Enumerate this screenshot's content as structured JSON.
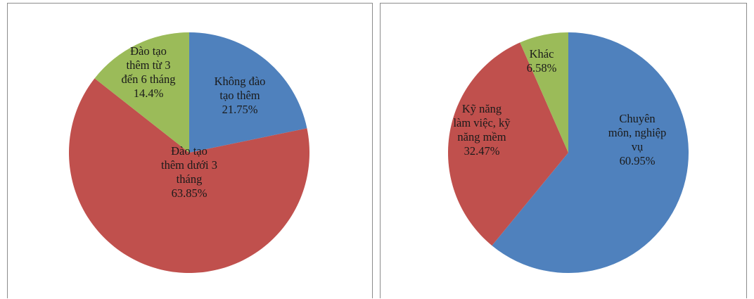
{
  "chart_data": [
    {
      "type": "pie",
      "title": "",
      "start_angle_deg": 0,
      "direction": "clockwise",
      "slices": [
        {
          "label_lines": [
            "Không đào",
            "tạo thêm",
            "21.75%"
          ],
          "value": 21.75,
          "color": "#4f81bd"
        },
        {
          "label_lines": [
            "Đào tạo",
            "thêm dưới 3",
            "tháng",
            "63.85%"
          ],
          "value": 63.85,
          "color": "#c0504d"
        },
        {
          "label_lines": [
            "Đào tạo",
            "thêm từ 3",
            "đến 6 tháng",
            "14.4%"
          ],
          "value": 14.4,
          "color": "#9bbb59"
        }
      ]
    },
    {
      "type": "pie",
      "title": "",
      "start_angle_deg": 0,
      "direction": "clockwise",
      "slices": [
        {
          "label_lines": [
            "Chuyên",
            "môn, nghiệp",
            "vụ",
            "60.95%"
          ],
          "value": 60.95,
          "color": "#4f81bd"
        },
        {
          "label_lines": [
            "Kỹ năng",
            "làm việc, kỹ",
            "năng mềm",
            "32.47%"
          ],
          "value": 32.47,
          "color": "#c0504d"
        },
        {
          "label_lines": [
            "Khác",
            "6.58%"
          ],
          "value": 6.58,
          "color": "#9bbb59"
        }
      ]
    }
  ]
}
